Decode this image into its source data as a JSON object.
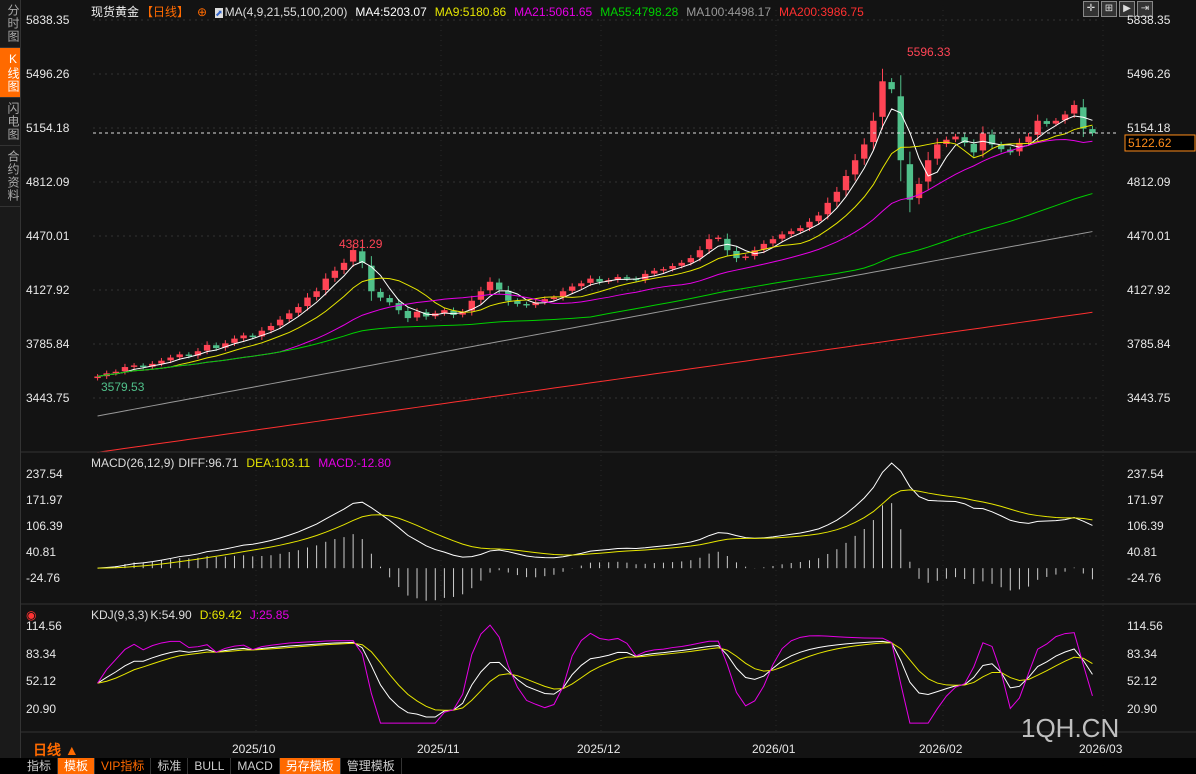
{
  "sidebar": {
    "tabs": [
      "分时图",
      "K线图",
      "闪电图",
      "合约资料"
    ],
    "active": 1
  },
  "header": {
    "instrument": "现货黄金",
    "period": "【日线】",
    "ma_label": "MA(4,9,21,55,100,200)",
    "ma": [
      {
        "name": "MA4:5203.07",
        "color": "#ffffff"
      },
      {
        "name": "MA9:5180.86",
        "color": "#e6e600"
      },
      {
        "name": "MA21:5061.65",
        "color": "#e600e6"
      },
      {
        "name": "MA55:4798.28",
        "color": "#00d000"
      },
      {
        "name": "MA100:4498.17",
        "color": "#999999"
      },
      {
        "name": "MA200:3986.75",
        "color": "#ff3030"
      }
    ]
  },
  "price_axis": [
    "5838.35",
    "5496.26",
    "5154.18",
    "4812.09",
    "4470.01",
    "4127.92",
    "3785.84",
    "3443.75"
  ],
  "current_price": "5122.62",
  "annotations": {
    "high": "5596.33",
    "mid_high": "4381.29",
    "low": "3579.53"
  },
  "macd": {
    "label": "MACD(26,12,9)",
    "diff": "DIFF:96.71",
    "dea": "DEA:103.11",
    "macd": "MACD:-12.80",
    "axis": [
      "237.54",
      "171.97",
      "106.39",
      "40.81",
      "-24.76"
    ]
  },
  "kdj": {
    "label": "KDJ(9,3,3)",
    "k": "K:54.90",
    "d": "D:69.42",
    "j": "J:25.85",
    "axis": [
      "114.56",
      "83.34",
      "52.12",
      "20.90"
    ]
  },
  "x_axis": [
    "2025/10",
    "2025/11",
    "2025/12",
    "2026/01",
    "2026/02",
    "2026/03"
  ],
  "period_selector": "日线 ▲",
  "watermark": "1QH.CN",
  "bottom_tabs": [
    "指标",
    "模板",
    "VIP指标",
    "标准",
    "BULL",
    "MACD",
    "另存模板",
    "管理模板"
  ],
  "colors": {
    "up": "#ff4455",
    "down": "#50c08a",
    "accent": "#ff6a00"
  },
  "chart_data": {
    "type": "candlestick",
    "ylim": [
      3101,
      5838.35
    ],
    "closes": [
      3580,
      3600,
      3610,
      3640,
      3650,
      3640,
      3660,
      3680,
      3700,
      3720,
      3710,
      3740,
      3780,
      3760,
      3790,
      3820,
      3840,
      3830,
      3870,
      3900,
      3940,
      3980,
      4020,
      4080,
      4120,
      4200,
      4250,
      4300,
      4381,
      4300,
      4120,
      4080,
      4050,
      4000,
      3950,
      3990,
      3960,
      3980,
      4000,
      3970,
      3990,
      4060,
      4120,
      4180,
      4130,
      4060,
      4040,
      4030,
      4050,
      4070,
      4080,
      4120,
      4150,
      4170,
      4200,
      4180,
      4190,
      4210,
      4200,
      4190,
      4230,
      4250,
      4260,
      4280,
      4300,
      4330,
      4380,
      4450,
      4460,
      4380,
      4330,
      4340,
      4380,
      4420,
      4450,
      4480,
      4500,
      4520,
      4560,
      4600,
      4680,
      4750,
      4850,
      4950,
      5050,
      5200,
      5450,
      5400,
      4950,
      4700,
      4800,
      4950,
      5050,
      5080,
      5100,
      5060,
      5000,
      5120,
      5050,
      5020,
      5000,
      5060,
      5100,
      5200,
      5180,
      5200,
      5240,
      5300,
      5150,
      5122
    ],
    "ma100_range": [
      3330,
      4498.17
    ],
    "ma200_range": [
      3100,
      3986.75
    ]
  }
}
